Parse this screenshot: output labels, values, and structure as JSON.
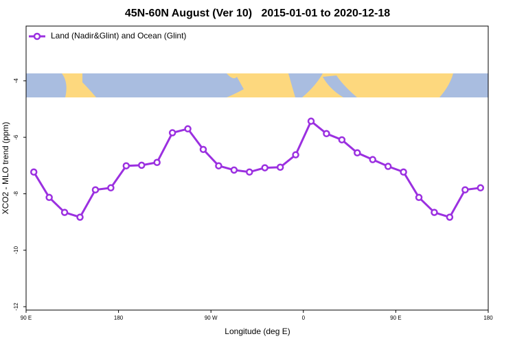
{
  "chart_data": {
    "type": "line",
    "title": "45N-60N August (Ver 10)   2015-01-01 to 2020-12-18",
    "xlabel": "Longitude (deg E)",
    "ylabel": "XCO2 - MLO trend (ppm)",
    "x": [
      97.5,
      112.5,
      127.5,
      142.5,
      157.5,
      172.5,
      187.5,
      202.5,
      217.5,
      232.5,
      247.5,
      262.5,
      277.5,
      292.5,
      307.5,
      322.5,
      337.5,
      352.5,
      367.5,
      382.5,
      397.5,
      412.5,
      427.5,
      442.5,
      457.5,
      472.5,
      487.5,
      502.5,
      517.5,
      532.5
    ],
    "series": [
      {
        "name": "Land (Nadir&Glint) and Ocean (Glint)",
        "color": "#9b30e0",
        "values": [
          -7.23,
          -8.13,
          -8.66,
          -8.83,
          -7.86,
          -7.79,
          -7.01,
          -6.99,
          -6.89,
          -5.84,
          -5.7,
          -6.43,
          -7.01,
          -7.16,
          -7.23,
          -7.08,
          -7.06,
          -6.62,
          -5.43,
          -5.87,
          -6.09,
          -6.55,
          -6.79,
          -7.03,
          -7.23,
          -8.13,
          -8.66,
          -8.83,
          -7.86,
          -7.79
        ]
      }
    ],
    "xlim": [
      90,
      540
    ],
    "xticks": [
      {
        "value": 90,
        "label": "90 E"
      },
      {
        "value": 180,
        "label": "180"
      },
      {
        "value": 270,
        "label": "90 W"
      },
      {
        "value": 360,
        "label": "0"
      },
      {
        "value": 450,
        "label": "90 E"
      },
      {
        "value": 540,
        "label": "180"
      }
    ],
    "ylim": [
      -12.12,
      -2.06
    ],
    "yticks": [
      -12,
      -10,
      -8,
      -6,
      -4
    ],
    "legend": "upper left"
  }
}
